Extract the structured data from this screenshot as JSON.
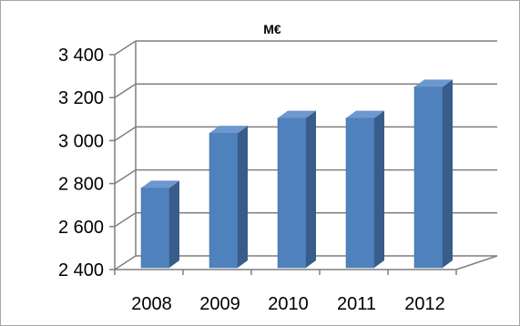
{
  "chart_data": {
    "type": "bar",
    "title": "M€",
    "xlabel": "",
    "ylabel": "",
    "categories": [
      "2008",
      "2009",
      "2010",
      "2011",
      "2012"
    ],
    "values": [
      2780,
      3035,
      3105,
      3105,
      3250
    ],
    "ylim": [
      2400,
      3400
    ],
    "yticks": [
      2400,
      2600,
      2800,
      3000,
      3200,
      3400
    ],
    "ytick_labels": [
      "2 400",
      "2 600",
      "2 800",
      "3 000",
      "3 200",
      "3 400"
    ],
    "grid": true,
    "legend": "none",
    "three_d": true,
    "colors": {
      "bar_front": "#4f81bd",
      "bar_side": "#385d8a",
      "bar_top": "#6d97cf",
      "gridline": "#7f7f7f",
      "frame": "#a6a6a6"
    }
  }
}
